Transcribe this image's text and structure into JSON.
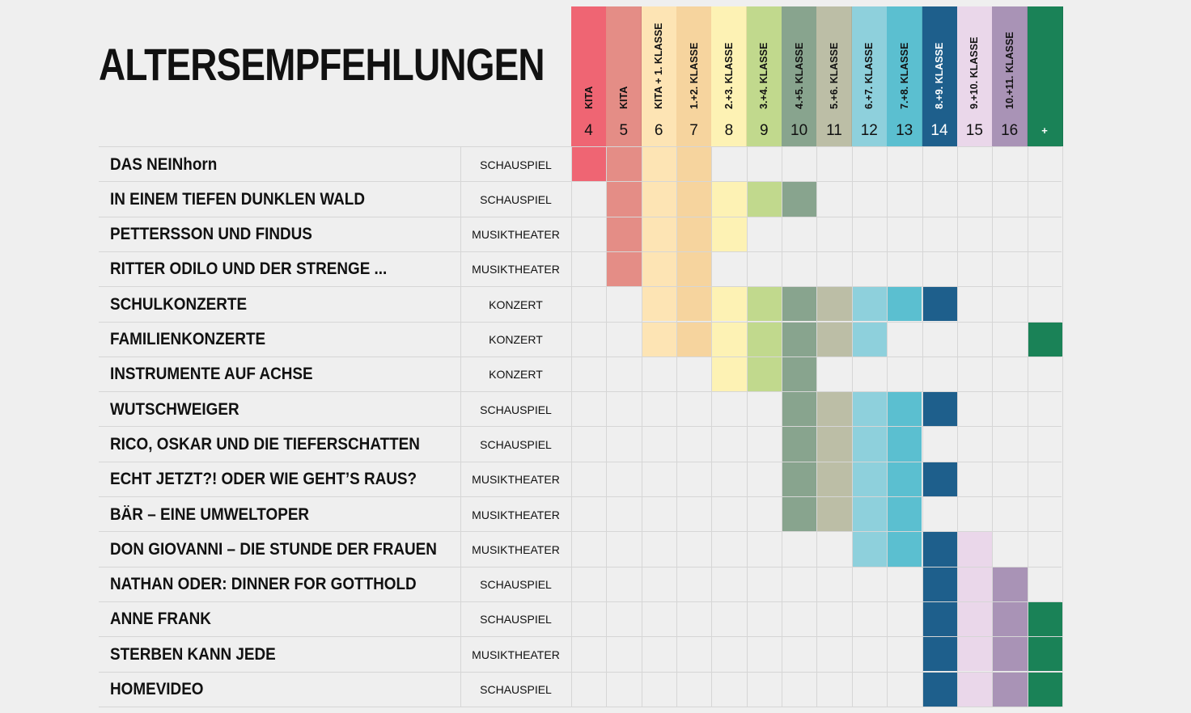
{
  "page": {
    "title": "ALTERSEMPFEHLUNGEN"
  },
  "columns": [
    {
      "label": "KITA",
      "number": "4",
      "color": "#ef6573"
    },
    {
      "label": "KITA",
      "number": "5",
      "color": "#e48d86"
    },
    {
      "label": "KITA + 1. KLASSE",
      "number": "6",
      "color": "#fde4b4"
    },
    {
      "label": "1.+2. KLASSE",
      "number": "7",
      "color": "#f6d49e"
    },
    {
      "label": "2.+3. KLASSE",
      "number": "8",
      "color": "#fdf2b4"
    },
    {
      "label": "3.+4. KLASSE",
      "number": "9",
      "color": "#c1d98d"
    },
    {
      "label": "4.+5. KLASSE",
      "number": "10",
      "color": "#88a48e"
    },
    {
      "label": "5.+6. KLASSE",
      "number": "11",
      "color": "#bcbea6"
    },
    {
      "label": "6.+7. KLASSE",
      "number": "12",
      "color": "#8ed0dc"
    },
    {
      "label": "7.+8. KLASSE",
      "number": "13",
      "color": "#5bbfd0"
    },
    {
      "label": "8.+9. KLASSE",
      "number": "14",
      "color": "#1e5f8c"
    },
    {
      "label": "9.+10. KLASSE",
      "number": "15",
      "color": "#ead7ea"
    },
    {
      "label": "10.+11. KLASSE",
      "number": "16",
      "color": "#a993b6"
    },
    {
      "label": "",
      "number": "+",
      "color": "#1a8257"
    }
  ],
  "rows": [
    {
      "title": "DAS NEINhorn",
      "genre": "SCHAUSPIEL",
      "cols": [
        0,
        1,
        2,
        3
      ]
    },
    {
      "title": "IN EINEM TIEFEN DUNKLEN WALD",
      "genre": "SCHAUSPIEL",
      "cols": [
        1,
        2,
        3,
        4,
        5,
        6
      ]
    },
    {
      "title": "PETTERSSON UND FINDUS",
      "genre": "MUSIKTHEATER",
      "cols": [
        1,
        2,
        3,
        4
      ]
    },
    {
      "title": "RITTER ODILO UND DER STRENGE ...",
      "genre": "MUSIKTHEATER",
      "cols": [
        1,
        2,
        3
      ]
    },
    {
      "title": "SCHULKONZERTE",
      "genre": "KONZERT",
      "cols": [
        2,
        3,
        4,
        5,
        6,
        7,
        8,
        9,
        10
      ]
    },
    {
      "title": "FAMILIENKONZERTE",
      "genre": "KONZERT",
      "cols": [
        2,
        3,
        4,
        5,
        6,
        7,
        8,
        13
      ]
    },
    {
      "title": "INSTRUMENTE AUF ACHSE",
      "genre": "KONZERT",
      "cols": [
        4,
        5,
        6
      ]
    },
    {
      "title": "WUTSCHWEIGER",
      "genre": "SCHAUSPIEL",
      "cols": [
        6,
        7,
        8,
        9,
        10
      ]
    },
    {
      "title": "RICO, OSKAR UND DIE TIEFERSCHATTEN",
      "genre": "SCHAUSPIEL",
      "cols": [
        6,
        7,
        8,
        9
      ]
    },
    {
      "title": "ECHT JETZT?! ODER WIE GEHT’S RAUS?",
      "genre": "MUSIKTHEATER",
      "cols": [
        6,
        7,
        8,
        9,
        10
      ]
    },
    {
      "title": "BÄR – EINE UMWELTOPER",
      "genre": "MUSIKTHEATER",
      "cols": [
        6,
        7,
        8,
        9
      ]
    },
    {
      "title": "DON GIOVANNI – DIE STUNDE DER FRAUEN",
      "genre": "MUSIKTHEATER",
      "cols": [
        8,
        9,
        10,
        11
      ]
    },
    {
      "title": "NATHAN ODER: DINNER FOR GOTTHOLD",
      "genre": "SCHAUSPIEL",
      "cols": [
        10,
        11,
        12
      ]
    },
    {
      "title": "ANNE FRANK",
      "genre": "SCHAUSPIEL",
      "cols": [
        10,
        11,
        12,
        13
      ]
    },
    {
      "title": "STERBEN KANN JEDE",
      "genre": "MUSIKTHEATER",
      "cols": [
        10,
        11,
        12,
        13
      ]
    },
    {
      "title": "HOMEVIDEO",
      "genre": "SCHAUSPIEL",
      "cols": [
        10,
        11,
        12,
        13
      ]
    }
  ]
}
